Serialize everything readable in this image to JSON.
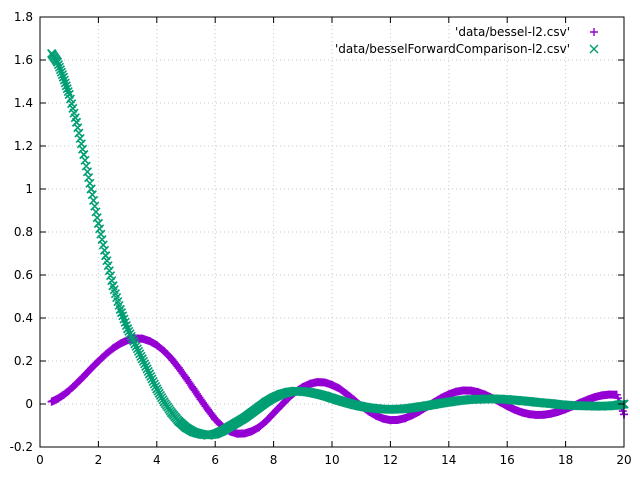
{
  "chart_data": {
    "type": "scatter",
    "title": "",
    "xlabel": "",
    "ylabel": "",
    "xlim": [
      0,
      20
    ],
    "ylim": [
      -0.2,
      1.8
    ],
    "xticks": [
      0,
      2,
      4,
      6,
      8,
      10,
      12,
      14,
      16,
      18,
      20
    ],
    "xtick_labels": [
      "0",
      "2",
      "4",
      "6",
      "8",
      "10",
      "12",
      "14",
      "16",
      "18",
      "20"
    ],
    "yticks": [
      -0.2,
      0,
      0.2,
      0.4,
      0.6,
      0.8,
      1,
      1.2,
      1.4,
      1.6,
      1.8
    ],
    "ytick_labels": [
      "-0.2",
      "0",
      "0.2",
      "0.4",
      "0.6",
      "0.8",
      "1",
      "1.2",
      "1.4",
      "1.6",
      "1.8"
    ],
    "grid": true,
    "legend_position": "top-right",
    "series": [
      {
        "name": "'data/bessel-l2.csv'",
        "marker": "plus",
        "color": "#9400d3",
        "x": [
          0.4,
          0.6,
          0.8,
          1.0,
          1.25,
          1.5,
          1.75,
          2.0,
          2.25,
          2.5,
          2.75,
          3.0,
          3.25,
          3.5,
          3.75,
          4.0,
          4.25,
          4.5,
          4.75,
          5.0,
          5.25,
          5.5,
          5.75,
          6.0,
          6.25,
          6.5,
          6.75,
          7.0,
          7.25,
          7.5,
          7.75,
          8.0,
          8.25,
          8.5,
          8.75,
          9.0,
          9.25,
          9.5,
          9.75,
          10.0,
          10.25,
          10.5,
          10.75,
          11.0,
          11.25,
          11.5,
          11.75,
          12.0,
          12.25,
          12.5,
          12.75,
          13.0,
          13.25,
          13.5,
          13.75,
          14.0,
          14.25,
          14.5,
          14.75,
          15.0,
          15.25,
          15.5,
          15.75,
          16.0,
          16.25,
          16.5,
          16.75,
          17.0,
          17.25,
          17.5,
          17.75,
          18.0,
          18.25,
          18.5,
          18.75,
          19.0,
          19.25,
          19.5,
          19.75,
          20.0
        ],
        "y": [
          0.011,
          0.024,
          0.042,
          0.063,
          0.095,
          0.129,
          0.165,
          0.199,
          0.231,
          0.259,
          0.281,
          0.297,
          0.305,
          0.304,
          0.293,
          0.274,
          0.246,
          0.211,
          0.168,
          0.121,
          0.072,
          0.022,
          -0.026,
          -0.071,
          -0.105,
          -0.127,
          -0.138,
          -0.137,
          -0.127,
          -0.108,
          -0.079,
          -0.043,
          -0.008,
          0.027,
          0.057,
          0.079,
          0.094,
          0.102,
          0.1,
          0.089,
          0.072,
          0.047,
          0.02,
          -0.009,
          -0.034,
          -0.054,
          -0.068,
          -0.075,
          -0.074,
          -0.066,
          -0.052,
          -0.034,
          -0.013,
          0.009,
          0.029,
          0.045,
          0.057,
          0.063,
          0.062,
          0.055,
          0.043,
          0.027,
          0.009,
          -0.01,
          -0.026,
          -0.039,
          -0.047,
          -0.051,
          -0.05,
          -0.045,
          -0.036,
          -0.024,
          -0.01,
          0.006,
          0.02,
          0.032,
          0.04,
          0.044,
          0.043,
          -0.048
        ]
      },
      {
        "name": "'data/besselForwardComparison-l2.csv'",
        "marker": "cross",
        "color": "#009e73",
        "x": [
          0.4,
          0.6,
          0.8,
          1.0,
          1.25,
          1.5,
          1.75,
          2.0,
          2.25,
          2.5,
          2.75,
          3.0,
          3.25,
          3.5,
          3.75,
          4.0,
          4.25,
          4.5,
          4.75,
          5.0,
          5.25,
          5.5,
          5.75,
          6.0,
          6.25,
          6.5,
          6.75,
          7.0,
          7.25,
          7.5,
          7.75,
          8.0,
          8.25,
          8.5,
          8.75,
          9.0,
          9.25,
          9.5,
          9.75,
          10.0,
          10.25,
          10.5,
          10.75,
          11.0,
          11.25,
          11.5,
          11.75,
          12.0,
          12.25,
          12.5,
          12.75,
          13.0,
          13.25,
          13.5,
          13.75,
          14.0,
          14.25,
          14.5,
          14.75,
          15.0,
          15.25,
          15.5,
          15.75,
          16.0,
          16.25,
          16.5,
          16.75,
          17.0,
          17.25,
          17.5,
          17.75,
          18.0,
          18.25,
          18.5,
          18.75,
          19.0,
          19.25,
          19.5,
          19.75,
          20.0
        ],
        "y": [
          1.63,
          1.59,
          1.52,
          1.44,
          1.31,
          1.16,
          1.0,
          0.84,
          0.69,
          0.55,
          0.44,
          0.35,
          0.28,
          0.21,
          0.14,
          0.07,
          0.01,
          -0.04,
          -0.08,
          -0.11,
          -0.13,
          -0.14,
          -0.145,
          -0.14,
          -0.125,
          -0.105,
          -0.085,
          -0.065,
          -0.04,
          -0.015,
          0.01,
          0.03,
          0.045,
          0.055,
          0.06,
          0.058,
          0.054,
          0.047,
          0.038,
          0.027,
          0.016,
          0.006,
          -0.003,
          -0.011,
          -0.017,
          -0.021,
          -0.024,
          -0.025,
          -0.024,
          -0.022,
          -0.018,
          -0.013,
          -0.008,
          -0.002,
          0.004,
          0.009,
          0.014,
          0.018,
          0.021,
          0.022,
          0.023,
          0.024,
          0.023,
          0.021,
          0.018,
          0.015,
          0.012,
          0.008,
          0.005,
          0.002,
          -0.002,
          -0.005,
          -0.007,
          -0.008,
          -0.009,
          -0.01,
          -0.01,
          -0.009,
          -0.006,
          0.0
        ]
      }
    ]
  }
}
